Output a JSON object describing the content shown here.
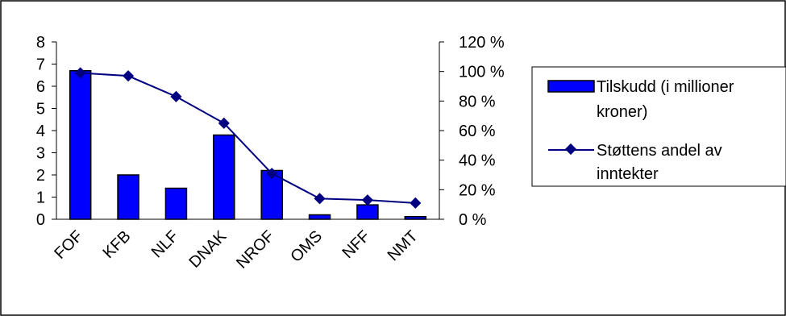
{
  "chart_data": {
    "type": "bar",
    "categories": [
      "FOF",
      "KFB",
      "NLF",
      "DNAK",
      "NROF",
      "OMS",
      "NFF",
      "NMT"
    ],
    "series": [
      {
        "name": "Tilskudd (i millioner kroner)",
        "type": "bar",
        "axis": "left",
        "values": [
          6.7,
          2.0,
          1.4,
          3.8,
          2.2,
          0.2,
          0.65,
          0.12
        ]
      },
      {
        "name": "Støttens andel av inntekter",
        "type": "line",
        "axis": "right",
        "values": [
          99,
          97,
          83,
          65,
          31,
          14,
          13,
          11
        ]
      }
    ],
    "y_left": {
      "min": 0,
      "max": 8,
      "ticks": [
        "0",
        "1",
        "2",
        "3",
        "4",
        "5",
        "6",
        "7",
        "8"
      ]
    },
    "y_right": {
      "min": 0,
      "max": 120,
      "ticks": [
        "0 %",
        "20 %",
        "40 %",
        "60 %",
        "80 %",
        "100 %",
        "120 %"
      ]
    },
    "legend": {
      "position": "right",
      "entries": [
        {
          "lines": [
            "Tilskudd (i millioner",
            "kroner)"
          ]
        },
        {
          "lines": [
            "Støttens andel av",
            "inntekter"
          ]
        }
      ]
    },
    "grid": false,
    "colors": {
      "bar_fill": "#0000FF",
      "line": "#000080",
      "marker": "#000080",
      "frame": "#000000"
    }
  }
}
